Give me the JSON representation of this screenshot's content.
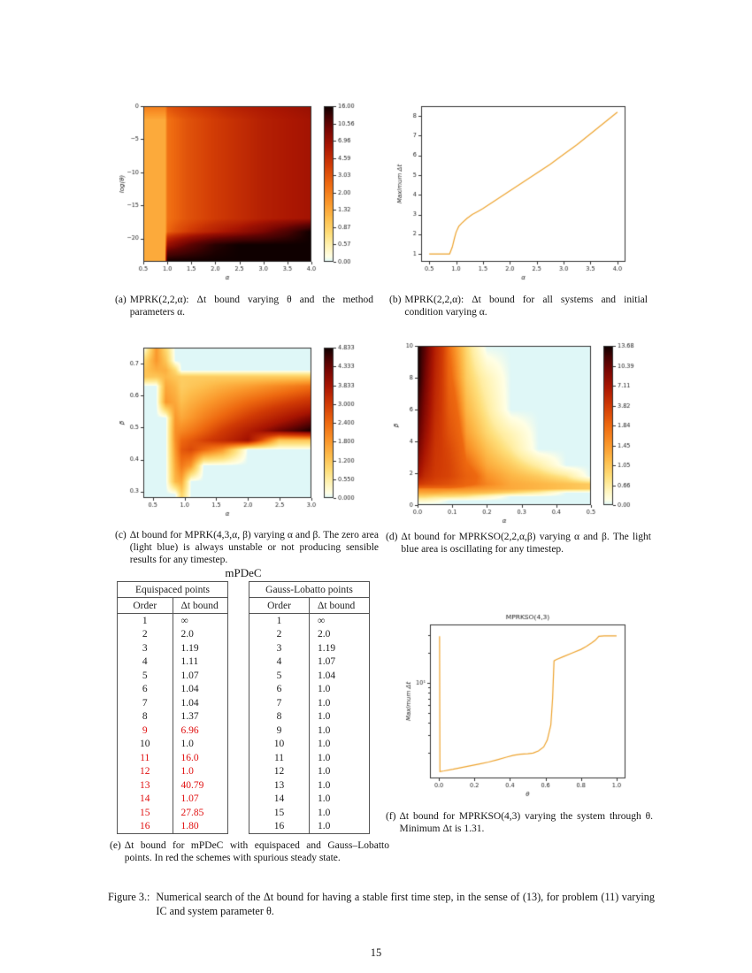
{
  "page_number": "15",
  "captions": {
    "a": {
      "tag": "(a)",
      "text": "MPRK(2,2,α): Δt bound varying θ and the method parameters α."
    },
    "b": {
      "tag": "(b)",
      "text": "MPRK(2,2,α): Δt bound for all systems and initial condition varying α."
    },
    "c": {
      "tag": "(c)",
      "text": "Δt bound for MPRK(4,3,α, β) varying α and β. The zero area (light blue) is always unstable or not producing sensible results for any timestep."
    },
    "d": {
      "tag": "(d)",
      "text": "Δt bound for MPRKSO(2,2,α,β) varying α and β. The light blue area is oscillating for any timestep."
    },
    "e": {
      "tag": "(e)",
      "text": "Δt bound for mPDeC with equispaced and Gauss–Lobatto points. In red the schemes with spurious steady state."
    },
    "f": {
      "tag": "(f)",
      "text": "Δt bound for MPRKSO(4,3) varying the system through θ. Minimum Δt is 1.31."
    }
  },
  "figure_caption": {
    "label": "Figure 3.:",
    "text": "Numerical search of the Δt bound for having a stable first time step, in the sense of (13), for problem (11) varying IC and system parameter θ."
  },
  "table_section": {
    "title": "mPDeC",
    "tables": [
      {
        "title": "Equispaced points",
        "columns": [
          "Order",
          "Δt bound"
        ],
        "rows": [
          {
            "order": "1",
            "bound": "∞",
            "red": false
          },
          {
            "order": "2",
            "bound": "2.0",
            "red": false
          },
          {
            "order": "3",
            "bound": "1.19",
            "red": false
          },
          {
            "order": "4",
            "bound": "1.11",
            "red": false
          },
          {
            "order": "5",
            "bound": "1.07",
            "red": false
          },
          {
            "order": "6",
            "bound": "1.04",
            "red": false
          },
          {
            "order": "7",
            "bound": "1.04",
            "red": false
          },
          {
            "order": "8",
            "bound": "1.37",
            "red": false
          },
          {
            "order": "9",
            "bound": "6.96",
            "red": true
          },
          {
            "order": "10",
            "bound": "1.0",
            "red": false
          },
          {
            "order": "11",
            "bound": "16.0",
            "red": true
          },
          {
            "order": "12",
            "bound": "1.0",
            "red": true
          },
          {
            "order": "13",
            "bound": "40.79",
            "red": true
          },
          {
            "order": "14",
            "bound": "1.07",
            "red": true
          },
          {
            "order": "15",
            "bound": "27.85",
            "red": true
          },
          {
            "order": "16",
            "bound": "1.80",
            "red": true
          }
        ]
      },
      {
        "title": "Gauss-Lobatto points",
        "columns": [
          "Order",
          "Δt bound"
        ],
        "rows": [
          {
            "order": "1",
            "bound": "∞",
            "red": false
          },
          {
            "order": "2",
            "bound": "2.0",
            "red": false
          },
          {
            "order": "3",
            "bound": "1.19",
            "red": false
          },
          {
            "order": "4",
            "bound": "1.07",
            "red": false
          },
          {
            "order": "5",
            "bound": "1.04",
            "red": false
          },
          {
            "order": "6",
            "bound": "1.0",
            "red": false
          },
          {
            "order": "7",
            "bound": "1.0",
            "red": false
          },
          {
            "order": "8",
            "bound": "1.0",
            "red": false
          },
          {
            "order": "9",
            "bound": "1.0",
            "red": false
          },
          {
            "order": "10",
            "bound": "1.0",
            "red": false
          },
          {
            "order": "11",
            "bound": "1.0",
            "red": false
          },
          {
            "order": "12",
            "bound": "1.0",
            "red": false
          },
          {
            "order": "13",
            "bound": "1.0",
            "red": false
          },
          {
            "order": "14",
            "bound": "1.0",
            "red": false
          },
          {
            "order": "15",
            "bound": "1.0",
            "red": false
          },
          {
            "order": "16",
            "bound": "1.0",
            "red": false
          }
        ]
      }
    ]
  },
  "chart_data": [
    {
      "id": "a",
      "type": "heatmap",
      "title": "",
      "xlabel": "α",
      "ylabel": "log(θ)",
      "xrange": [
        0.5,
        4.0
      ],
      "yrange": [
        -23.5,
        0
      ],
      "xticks": [
        0.5,
        1.0,
        1.5,
        2.0,
        2.5,
        3.0,
        3.5,
        4.0
      ],
      "xtick_labels": [
        "0.5",
        "1.0",
        "1.5",
        "2.0",
        "2.5",
        "3.0",
        "3.5",
        "4.0"
      ],
      "yticks": [
        0,
        -5,
        -10,
        -15,
        -20
      ],
      "ytick_labels": [
        "0",
        "−5",
        "−10",
        "−15",
        "−20"
      ],
      "colorbar_labels": [
        "16.00",
        "10.56",
        "6.96",
        "4.59",
        "3.03",
        "2.00",
        "1.32",
        "0.87",
        "0.57",
        "0.00"
      ],
      "levels": [
        0,
        0.57,
        0.87,
        1.32,
        2.0,
        3.03,
        4.59,
        6.96,
        10.56,
        16.0
      ],
      "grid_x": [
        0.5,
        0.95,
        1.0,
        1.5,
        2.0,
        2.5,
        3.0,
        3.5,
        4.0
      ],
      "grid_y": [
        0,
        -2,
        -10,
        -17,
        -19,
        -21,
        -23.5
      ],
      "grid_values": [
        [
          2.0,
          2.0,
          3.0,
          4.0,
          4.6,
          5.5,
          6.0,
          6.5,
          7.0
        ],
        [
          1.3,
          1.3,
          2.3,
          3.2,
          4.0,
          4.6,
          5.5,
          6.0,
          6.5
        ],
        [
          1.3,
          1.3,
          2.3,
          3.2,
          4.0,
          4.6,
          5.5,
          6.0,
          6.5
        ],
        [
          1.3,
          1.3,
          2.3,
          3.2,
          4.0,
          4.6,
          5.5,
          6.0,
          6.5
        ],
        [
          1.3,
          1.3,
          2.6,
          4.2,
          5.5,
          7.0,
          9.0,
          12.0,
          16.0
        ],
        [
          1.3,
          1.3,
          7.0,
          11.0,
          14.5,
          16.0,
          16.0,
          16.0,
          16.0
        ],
        [
          1.3,
          1.3,
          16.0,
          16.0,
          16.0,
          16.0,
          16.0,
          16.0,
          16.0
        ]
      ]
    },
    {
      "id": "b",
      "type": "line",
      "title": "",
      "xlabel": "α",
      "ylabel": "Maximum Δt",
      "xrange": [
        0.35,
        4.15
      ],
      "yrange": [
        0.6,
        8.5
      ],
      "xticks": [
        0.5,
        1.0,
        1.5,
        2.0,
        2.5,
        3.0,
        3.5,
        4.0
      ],
      "xtick_labels": [
        "0.5",
        "1.0",
        "1.5",
        "2.0",
        "2.5",
        "3.0",
        "3.5",
        "4.0"
      ],
      "yticks": [
        1,
        2,
        3,
        4,
        5,
        6,
        7,
        8
      ],
      "ytick_labels": [
        "1",
        "2",
        "3",
        "4",
        "5",
        "6",
        "7",
        "8"
      ],
      "line_color": "#eda32e",
      "points": [
        [
          0.5,
          1.0
        ],
        [
          0.88,
          1.0
        ],
        [
          0.93,
          1.35
        ],
        [
          0.97,
          1.8
        ],
        [
          1.0,
          2.1
        ],
        [
          1.05,
          2.4
        ],
        [
          1.1,
          2.55
        ],
        [
          1.2,
          2.8
        ],
        [
          1.3,
          3.0
        ],
        [
          1.4,
          3.15
        ],
        [
          1.5,
          3.3
        ],
        [
          1.75,
          3.75
        ],
        [
          2.0,
          4.2
        ],
        [
          2.25,
          4.65
        ],
        [
          2.5,
          5.1
        ],
        [
          2.75,
          5.55
        ],
        [
          3.0,
          6.05
        ],
        [
          3.25,
          6.55
        ],
        [
          3.5,
          7.1
        ],
        [
          3.75,
          7.65
        ],
        [
          4.0,
          8.2
        ]
      ]
    },
    {
      "id": "c",
      "type": "heatmap",
      "title": "",
      "xlabel": "α",
      "ylabel": "β",
      "xrange": [
        0.35,
        3.0
      ],
      "yrange": [
        0.28,
        0.75
      ],
      "xticks": [
        0.5,
        1.0,
        1.5,
        2.0,
        2.5,
        3.0
      ],
      "xtick_labels": [
        "0.5",
        "1.0",
        "1.5",
        "2.0",
        "2.5",
        "3.0"
      ],
      "yticks": [
        0.3,
        0.4,
        0.5,
        0.6,
        0.7
      ],
      "ytick_labels": [
        "0.3",
        "0.4",
        "0.5",
        "0.6",
        "0.7"
      ],
      "colorbar_labels": [
        "4.833",
        "4.333",
        "3.833",
        "3.000",
        "2.400",
        "1.800",
        "1.200",
        "0.550",
        "0.000"
      ],
      "levels": [
        0,
        0.55,
        1.2,
        1.8,
        2.4,
        3.0,
        3.833,
        4.333,
        4.833
      ],
      "grid_x": [
        0.35,
        0.55,
        0.7,
        0.85,
        0.95,
        1.1,
        1.3,
        1.6,
        2.0,
        2.5,
        3.0
      ],
      "grid_y": [
        0.75,
        0.71,
        0.68,
        0.66,
        0.63,
        0.58,
        0.53,
        0.49,
        0.46,
        0.43,
        0.38,
        0.33,
        0.29
      ],
      "grid_values": [
        [
          0,
          1.8,
          0.9,
          0,
          0,
          0,
          0,
          0,
          0,
          0,
          0
        ],
        [
          0.9,
          1.8,
          1.2,
          0,
          0,
          0,
          0,
          0,
          0,
          0,
          0
        ],
        [
          1.2,
          1.5,
          1.5,
          0.9,
          0,
          0,
          0,
          0,
          0,
          0,
          0
        ],
        [
          1.2,
          1.2,
          1.4,
          1.2,
          1.1,
          1.1,
          1.1,
          1.1,
          1.1,
          1.1,
          1.1
        ],
        [
          0,
          0,
          1.6,
          1.4,
          1.1,
          1.2,
          1.3,
          1.5,
          1.7,
          2.0,
          2.3
        ],
        [
          0,
          0,
          1.8,
          1.6,
          1.3,
          1.5,
          1.7,
          2.0,
          2.4,
          2.8,
          3.2
        ],
        [
          0,
          0,
          0,
          1.8,
          1.6,
          1.8,
          2.1,
          2.5,
          3.0,
          3.6,
          4.2
        ],
        [
          0,
          0,
          0,
          1.9,
          2.0,
          2.2,
          2.5,
          3.0,
          3.6,
          4.3,
          4.8
        ],
        [
          0,
          0,
          0,
          1.9,
          2.4,
          2.6,
          2.9,
          3.3,
          3.9,
          1.2,
          1.2
        ],
        [
          0,
          0,
          0,
          1.8,
          2.6,
          2.8,
          2.4,
          1.8,
          0,
          0,
          0
        ],
        [
          0,
          0,
          0,
          1.6,
          2.2,
          1.8,
          0,
          0,
          0,
          0,
          0
        ],
        [
          0,
          0,
          0,
          1.4,
          1.6,
          0,
          0,
          0,
          0,
          0,
          0
        ],
        [
          0,
          0,
          0,
          0,
          1.0,
          0,
          0,
          0,
          0,
          0,
          0
        ]
      ]
    },
    {
      "id": "d",
      "type": "heatmap",
      "title": "",
      "xlabel": "α",
      "ylabel": "β",
      "xrange": [
        0.0,
        0.5
      ],
      "yrange": [
        0,
        10
      ],
      "xticks": [
        0.0,
        0.1,
        0.2,
        0.3,
        0.4,
        0.5
      ],
      "xtick_labels": [
        "0.0",
        "0.1",
        "0.2",
        "0.3",
        "0.4",
        "0.5"
      ],
      "yticks": [
        0,
        2,
        4,
        6,
        8,
        10
      ],
      "ytick_labels": [
        "0",
        "2",
        "4",
        "6",
        "8",
        "10"
      ],
      "colorbar_labels": [
        "13.68",
        "10.39",
        "7.11",
        "3.82",
        "1.84",
        "1.45",
        "1.05",
        "0.66",
        "0.00"
      ],
      "levels": [
        0,
        0.66,
        1.05,
        1.45,
        1.84,
        3.82,
        7.11,
        10.39,
        13.68
      ],
      "grid_x": [
        0.0,
        0.02,
        0.05,
        0.09,
        0.14,
        0.2,
        0.27,
        0.35,
        0.43,
        0.5
      ],
      "grid_y": [
        10,
        8,
        6,
        4.5,
        3.5,
        2.5,
        1.8,
        1.3,
        1.0,
        0.75,
        0.5,
        0.25,
        0
      ],
      "grid_values": [
        [
          13.6,
          11,
          6,
          1.8,
          0.9,
          0,
          0,
          0,
          0,
          0
        ],
        [
          13.6,
          10,
          5.5,
          2.0,
          1.0,
          0.5,
          0,
          0,
          0,
          0
        ],
        [
          12,
          9,
          5,
          2.4,
          1.2,
          0.7,
          0,
          0,
          0,
          0
        ],
        [
          11,
          8,
          4.5,
          2.8,
          1.4,
          0.9,
          0.5,
          0,
          0,
          0
        ],
        [
          10,
          7,
          4.2,
          3.2,
          1.6,
          1.1,
          0.7,
          0,
          0,
          0
        ],
        [
          8.5,
          6,
          4.0,
          3.4,
          1.9,
          1.3,
          1.0,
          0.6,
          0,
          0
        ],
        [
          7,
          5,
          3.8,
          3.4,
          2.2,
          1.5,
          1.2,
          1.0,
          0.7,
          0
        ],
        [
          4,
          3.5,
          3.2,
          2.8,
          2.0,
          1.6,
          1.3,
          1.2,
          1.1,
          1.0
        ],
        [
          1.6,
          1.6,
          1.6,
          1.6,
          1.5,
          1.4,
          1.3,
          1.2,
          1.1,
          1.0
        ],
        [
          1.3,
          1.3,
          1.3,
          1.2,
          1.2,
          1.1,
          0.9,
          0.6,
          0,
          0
        ],
        [
          0.9,
          0.9,
          0.8,
          0.8,
          0.7,
          0.4,
          0,
          0,
          0,
          0
        ],
        [
          0.4,
          0.4,
          0.3,
          0,
          0,
          0,
          0,
          0,
          0,
          0
        ],
        [
          0,
          0,
          0,
          0,
          0,
          0,
          0,
          0,
          0,
          0
        ]
      ]
    },
    {
      "id": "f",
      "type": "line",
      "title": "MPRKSO(4,3)",
      "xlabel": "θ",
      "ylabel": "Maximum Δt",
      "yscale": "log",
      "xrange": [
        -0.05,
        1.05
      ],
      "yrange": [
        1.12,
        38
      ],
      "xticks": [
        0.0,
        0.2,
        0.4,
        0.6,
        0.8,
        1.0
      ],
      "xtick_labels": [
        "0.0",
        "0.2",
        "0.4",
        "0.6",
        "0.8",
        "1.0"
      ],
      "yticks": [
        10
      ],
      "ytick_labels": [
        "10¹"
      ],
      "log_minor_ticks": [
        2,
        3,
        4,
        5,
        6,
        7,
        8,
        9,
        20,
        30
      ],
      "line_color": "#eda32e",
      "points": [
        [
          0.004,
          29
        ],
        [
          0.006,
          1.31
        ],
        [
          0.03,
          1.33
        ],
        [
          0.08,
          1.38
        ],
        [
          0.13,
          1.44
        ],
        [
          0.18,
          1.5
        ],
        [
          0.23,
          1.56
        ],
        [
          0.28,
          1.63
        ],
        [
          0.33,
          1.72
        ],
        [
          0.38,
          1.82
        ],
        [
          0.42,
          1.9
        ],
        [
          0.46,
          1.95
        ],
        [
          0.5,
          1.97
        ],
        [
          0.53,
          2.0
        ],
        [
          0.56,
          2.1
        ],
        [
          0.59,
          2.3
        ],
        [
          0.61,
          2.7
        ],
        [
          0.63,
          3.8
        ],
        [
          0.64,
          7.0
        ],
        [
          0.648,
          16.5
        ],
        [
          0.66,
          17
        ],
        [
          0.7,
          18.2
        ],
        [
          0.75,
          19.8
        ],
        [
          0.8,
          21.5
        ],
        [
          0.83,
          23
        ],
        [
          0.86,
          25
        ],
        [
          0.88,
          26.5
        ],
        [
          0.9,
          29
        ],
        [
          0.93,
          29.3
        ],
        [
          1.0,
          29.3
        ]
      ]
    }
  ]
}
